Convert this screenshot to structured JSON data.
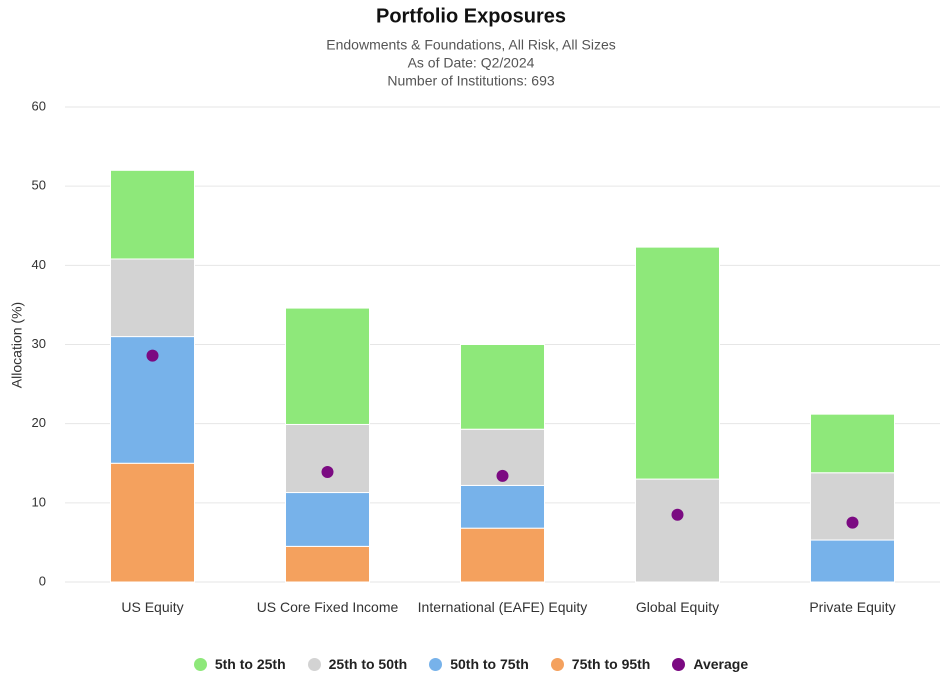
{
  "chart_data": {
    "type": "bar",
    "stacked": true,
    "title": "Portfolio Exposures",
    "subtitle": [
      "Endowments & Foundations, All Risk, All Sizes",
      "As of Date: Q2/2024",
      "Number of Institutions: 693"
    ],
    "y_label": "Allocation (%)",
    "categories": [
      "US Equity",
      "US Core Fixed Income",
      "International (EAFE) Equity",
      "Global Equity",
      "Private Equity"
    ],
    "series": [
      {
        "name": "5th to 25th",
        "color": "#8ee87a",
        "values": [
          11.2,
          14.7,
          10.7,
          29.3,
          7.4
        ]
      },
      {
        "name": "25th to 50th",
        "color": "#d3d3d3",
        "values": [
          9.8,
          8.6,
          7.1,
          13,
          8.5
        ]
      },
      {
        "name": "50th to 75th",
        "color": "#77b2ea",
        "values": [
          16,
          6.8,
          5.4,
          null,
          5.3
        ]
      },
      {
        "name": "75th to 95th",
        "color": "#f4a15e",
        "values": [
          15,
          4.5,
          6.8,
          null,
          null
        ]
      },
      {
        "name": "Average",
        "color": "#7b0a82",
        "type": "scatter",
        "values": [
          28.6,
          13.9,
          13.4,
          8.5,
          7.5
        ]
      }
    ],
    "ylim": [
      0,
      60
    ],
    "yticks": [
      0,
      10,
      20,
      30,
      40,
      50,
      60
    ],
    "grid": true,
    "legend": "bottom"
  }
}
